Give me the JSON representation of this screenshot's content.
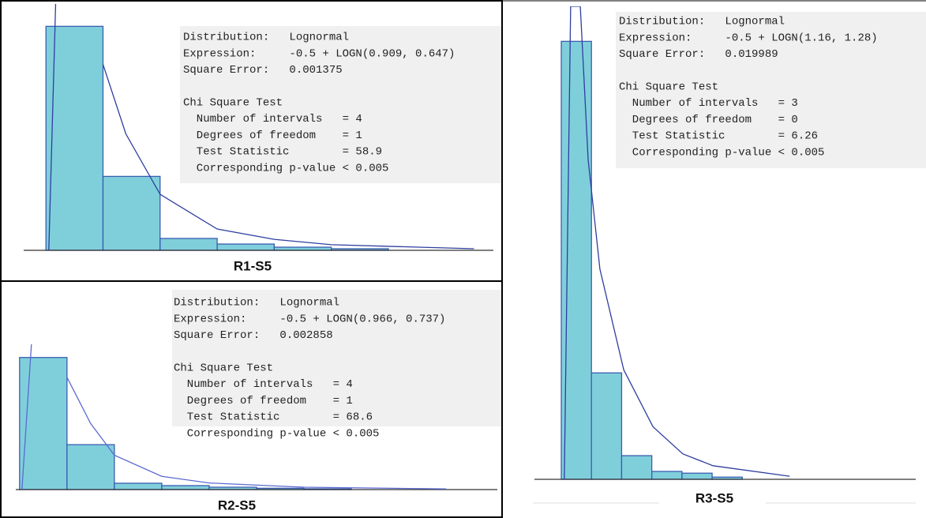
{
  "chart_data": [
    {
      "type": "histogram",
      "title": "R1-S5",
      "bins": [
        0,
        1,
        2,
        3,
        4,
        5,
        6
      ],
      "values": [
        1,
        0.33,
        0.053,
        0.028,
        0.014,
        0.007
      ],
      "xlim": [
        -0.39,
        7.84
      ],
      "ylim": [
        0,
        1.1
      ],
      "curve": {
        "x": [
          0.05,
          0.17,
          0.83,
          1.0,
          1.4,
          2.0,
          3.0,
          4.0,
          5.0,
          7.5
        ],
        "values": [
          0,
          1.1,
          null,
          0.83,
          0.52,
          0.25,
          0.095,
          0.049,
          0.025,
          0.007
        ]
      },
      "color": "#7fcfdb",
      "edge_color": "#3b5db0",
      "curve_color": "#2f3ea0",
      "text_lines": [
        "Distribution:   Lognormal",
        "Expression:     -0.5 + LOGN(0.909, 0.647)",
        "Square Error:   0.001375",
        "Chi Square Test",
        "  Number of intervals   = 4",
        "  Degrees of freedom    = 1",
        "  Test Statistic        = 58.9",
        "  Corresponding p-value < 0.005"
      ]
    },
    {
      "type": "histogram",
      "title": "R2-S5",
      "bins": [
        0,
        1,
        2,
        3,
        4,
        5,
        6,
        7
      ],
      "values": [
        1,
        0.34,
        0.048,
        0.03,
        0.018,
        0.01,
        0.006
      ],
      "xlim": [
        -0.08,
        10.08
      ],
      "ylim": [
        0,
        1.1
      ],
      "curve": {
        "x": [
          0.05,
          0.25,
          0.8,
          1.0,
          1.5,
          2.0,
          3.0,
          4.0,
          6.0,
          9.0
        ],
        "values": [
          0,
          1.1,
          null,
          0.85,
          0.5,
          0.26,
          0.1,
          0.05,
          0.018,
          0.005
        ]
      },
      "color": "#7fcfdb",
      "edge_color": "#3b5db0",
      "curve_color": "#5a6ad0",
      "text_lines": [
        "Distribution:   Lognormal",
        "Expression:     -0.5 + LOGN(0.966, 0.737)",
        "Square Error:   0.002858",
        "Chi Square Test",
        "  Number of intervals   = 4",
        "  Degrees of freedom    = 1",
        "  Test Statistic        = 68.6",
        "  Corresponding p-value < 0.005"
      ]
    },
    {
      "type": "histogram",
      "title": "R3-S5",
      "bins": [
        0,
        1,
        2,
        3,
        4,
        5,
        6
      ],
      "values": [
        1,
        0.243,
        0.054,
        0.018,
        0.014,
        0.005
      ],
      "xlim": [
        -0.89,
        11.75
      ],
      "ylim": [
        0,
        1.08
      ],
      "curve": {
        "x": [
          0.1,
          0.31,
          0.63,
          0.89,
          1.28,
          2.07,
          3.04,
          4.03,
          5.03,
          7.57
        ],
        "values": [
          0,
          1.08,
          1.08,
          0.73,
          0.48,
          0.25,
          0.12,
          0.058,
          0.031,
          0.007
        ]
      },
      "color": "#7fcfdb",
      "edge_color": "#3b5db0",
      "curve_color": "#2f3ea0",
      "text_lines": [
        "Distribution:   Lognormal",
        "Expression:     -0.5 + LOGN(1.16, 1.28)",
        "Square Error:   0.019989",
        "Chi Square Test",
        "  Number of intervals   = 3",
        "  Degrees of freedom    = 0",
        "  Test Statistic        = 6.26",
        "  Corresponding p-value < 0.005"
      ]
    }
  ]
}
